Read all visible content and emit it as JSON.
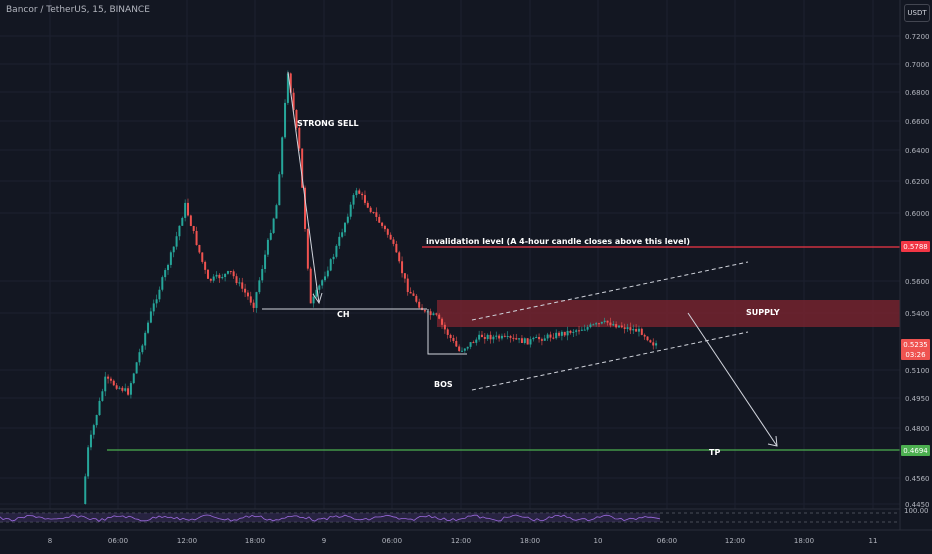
{
  "header": {
    "symbol_title": "Bancor / TetherUS, 15, BINANCE",
    "currency": "USDT"
  },
  "colors": {
    "background": "#131722",
    "bull": "#26a69a",
    "bear": "#ef5350",
    "invalidation_line": "#f23645",
    "tp_line": "#4caf50",
    "supply_zone": "#7b2430",
    "annotation": "#ffffff"
  },
  "chart_data": {
    "type": "candlestick",
    "y_axis": {
      "ticks": [
        "0.7200",
        "0.7000",
        "0.6800",
        "0.6600",
        "0.6400",
        "0.6200",
        "0.6000",
        "0.5600",
        "0.5400",
        "0.5100",
        "0.4950",
        "0.4800",
        "0.4560",
        "0.4450"
      ]
    },
    "x_axis": {
      "ticks": [
        "8",
        "06:00",
        "12:00",
        "18:00",
        "9",
        "06:00",
        "12:00",
        "18:00",
        "10",
        "06:00",
        "12:00",
        "18:00",
        "11"
      ]
    },
    "price_path": [
      {
        "x": "8 03:00",
        "y": 0.444
      },
      {
        "x": "8 03:30",
        "y": 0.47
      },
      {
        "x": "8 05:00",
        "y": 0.505
      },
      {
        "x": "8 07:00",
        "y": 0.498
      },
      {
        "x": "8 09:00",
        "y": 0.54
      },
      {
        "x": "8 11:00",
        "y": 0.58
      },
      {
        "x": "8 12:00",
        "y": 0.605
      },
      {
        "x": "8 14:00",
        "y": 0.56
      },
      {
        "x": "8 16:00",
        "y": 0.565
      },
      {
        "x": "8 18:00",
        "y": 0.545
      },
      {
        "x": "8 20:00",
        "y": 0.605
      },
      {
        "x": "8 21:00",
        "y": 0.695
      },
      {
        "x": "8 22:00",
        "y": 0.64
      },
      {
        "x": "8 23:00",
        "y": 0.545
      },
      {
        "x": "9 01:00",
        "y": 0.575
      },
      {
        "x": "9 03:00",
        "y": 0.615
      },
      {
        "x": "9 06:00",
        "y": 0.585
      },
      {
        "x": "9 07:30",
        "y": 0.555
      },
      {
        "x": "9 09:00",
        "y": 0.54
      },
      {
        "x": "9 10:00",
        "y": 0.538
      },
      {
        "x": "9 12:00",
        "y": 0.52
      },
      {
        "x": "9 14:00",
        "y": 0.528
      },
      {
        "x": "9 18:00",
        "y": 0.525
      },
      {
        "x": "10 01:00",
        "y": 0.535
      },
      {
        "x": "10 04:00",
        "y": 0.53
      },
      {
        "x": "10 05:00",
        "y": 0.524
      }
    ],
    "indicator": {
      "label": "100.00"
    }
  },
  "price_labels": {
    "invalidation": "0.5788",
    "current": "0.5235",
    "countdown": "03:26",
    "tp": "0.4694"
  },
  "annotations": {
    "strong_sell": "STRONG SELL",
    "ch": "CH",
    "bos": "BOS",
    "invalidation_text": "invalidation level (A 4-hour candle closes above this level)",
    "supply": "SUPPLY",
    "tp": "TP"
  }
}
